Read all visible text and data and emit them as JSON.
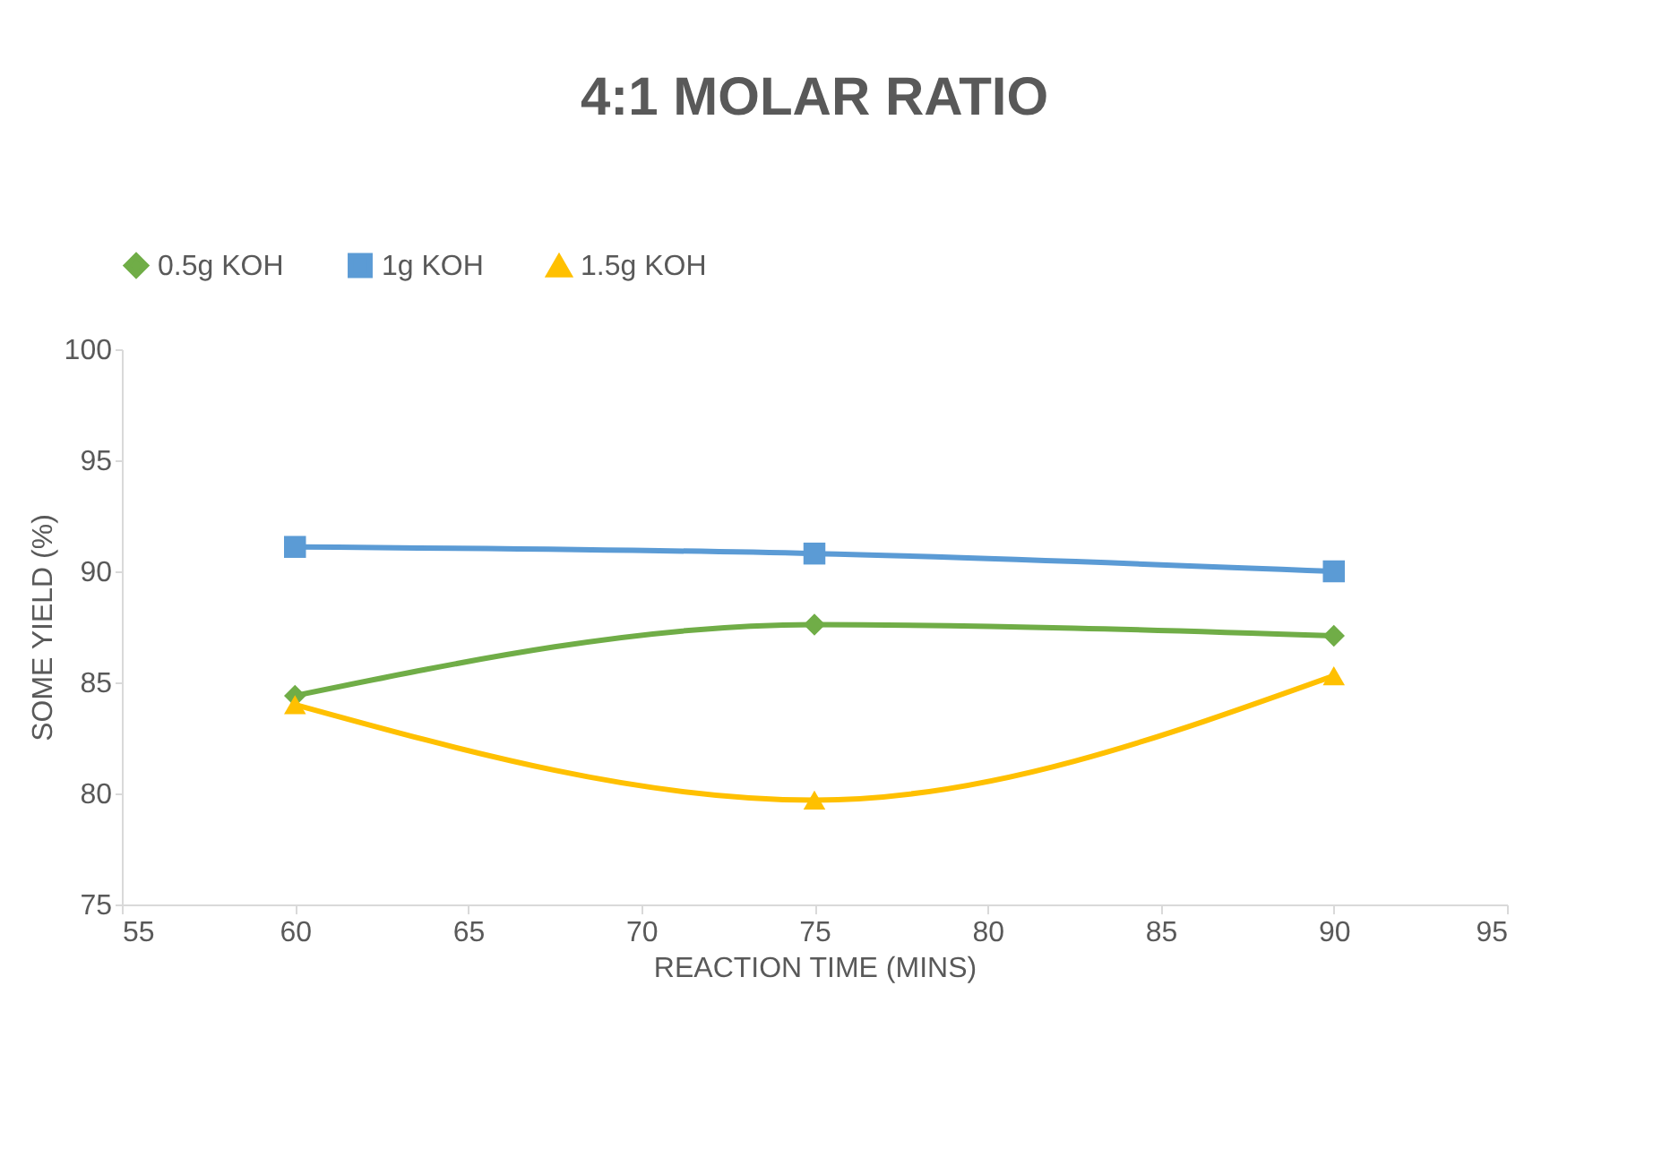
{
  "chart_data": {
    "type": "line",
    "title": "4:1 MOLAR RATIO",
    "xlabel": "REACTION TIME (MINS)",
    "ylabel": "SOME YIELD (%)",
    "x": [
      60,
      75,
      90
    ],
    "series": [
      {
        "name": "0.5g KOH",
        "color": "#70ad47",
        "marker": "diamond",
        "values": [
          84.4,
          87.6,
          87.1
        ]
      },
      {
        "name": "1g KOH",
        "color": "#5b9bd5",
        "marker": "square",
        "values": [
          91.1,
          90.8,
          90.0
        ]
      },
      {
        "name": "1.5g KOH",
        "color": "#ffc000",
        "marker": "triangle",
        "values": [
          84.0,
          79.7,
          85.3
        ]
      }
    ],
    "xlim": [
      55,
      95
    ],
    "xticks": [
      55,
      60,
      65,
      70,
      75,
      80,
      85,
      90,
      95
    ],
    "ylim": [
      75,
      100
    ],
    "yticks": [
      75,
      80,
      85,
      90,
      95,
      100
    ],
    "grid": false,
    "legend": "top"
  }
}
